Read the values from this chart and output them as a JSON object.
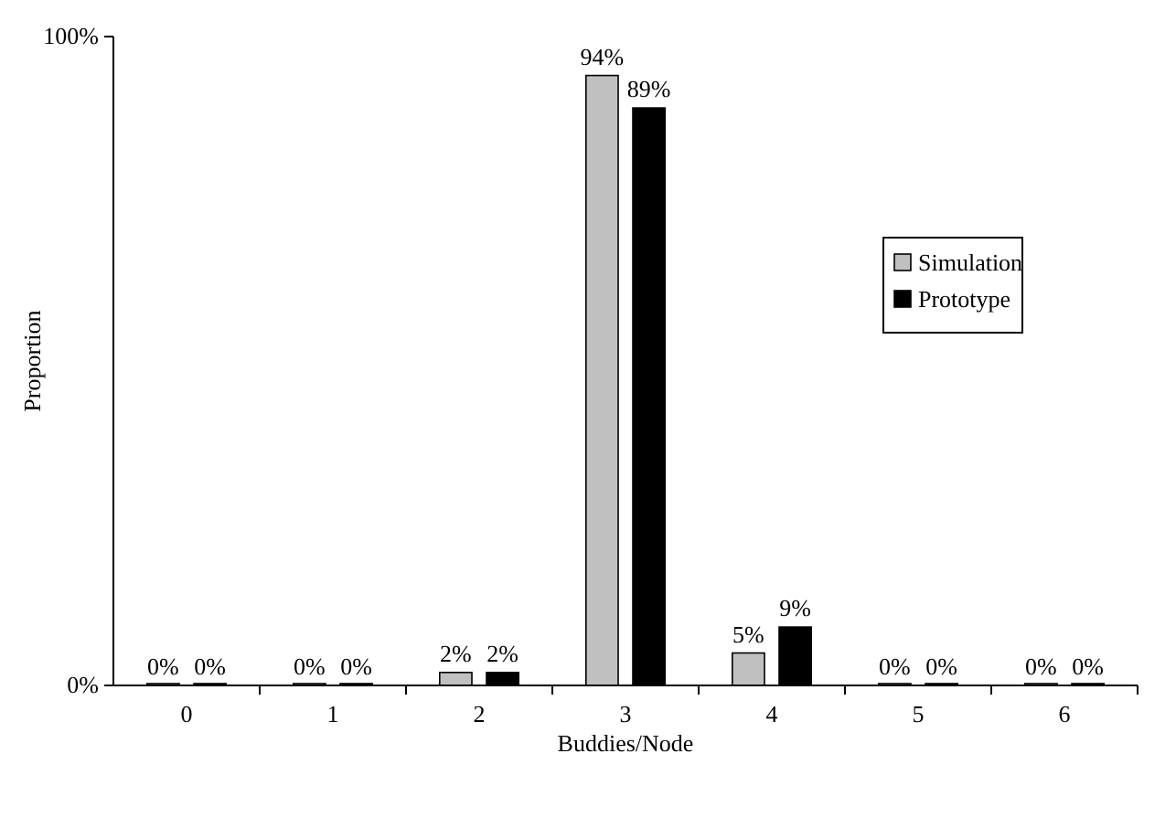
{
  "chart_data": {
    "type": "bar",
    "xlabel": "Buddies/Node",
    "ylabel": "Proportion",
    "categories": [
      "0",
      "1",
      "2",
      "3",
      "4",
      "5",
      "6"
    ],
    "series": [
      {
        "name": "Simulation",
        "color": "#c0c0c0",
        "values": [
          0,
          0,
          2,
          94,
          5,
          0,
          0
        ],
        "value_labels": [
          "0%",
          "0%",
          "2%",
          "94%",
          "5%",
          "0%",
          "0%"
        ]
      },
      {
        "name": "Prototype",
        "color": "#000000",
        "values": [
          0,
          0,
          2,
          89,
          9,
          0,
          0
        ],
        "value_labels": [
          "0%",
          "0%",
          "2%",
          "89%",
          "9%",
          "0%",
          "0%"
        ]
      }
    ],
    "ylim": [
      0,
      100
    ],
    "yticks": [
      {
        "value": 0,
        "label": "0%"
      },
      {
        "value": 100,
        "label": "100%"
      }
    ],
    "grid": false,
    "legend": "right"
  }
}
